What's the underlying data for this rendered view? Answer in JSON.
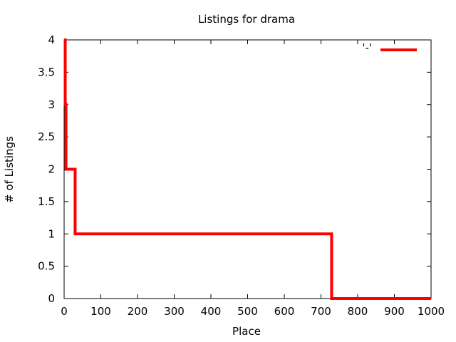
{
  "chart_data": {
    "type": "line",
    "title": "Listings for drama",
    "xlabel": "Place",
    "ylabel": "# of Listings",
    "xlim": [
      0,
      1000
    ],
    "ylim": [
      0,
      4
    ],
    "x_ticks": [
      "0",
      "100",
      "200",
      "300",
      "400",
      "500",
      "600",
      "700",
      "800",
      "900",
      "1000"
    ],
    "y_ticks": [
      "0",
      "0.5",
      "1",
      "1.5",
      "2",
      "2.5",
      "3",
      "3.5",
      "4"
    ],
    "x_tick_values": [
      0,
      100,
      200,
      300,
      400,
      500,
      600,
      700,
      800,
      900,
      1000
    ],
    "y_tick_values": [
      0,
      0.5,
      1,
      1.5,
      2,
      2.5,
      3,
      3.5,
      4
    ],
    "grid": false,
    "legend_position": "top-right",
    "series": [
      {
        "name": "'-'",
        "color": "#ff0000",
        "step": true,
        "points": [
          {
            "x": 0,
            "y": 4
          },
          {
            "x": 3,
            "y": 3
          },
          {
            "x": 5,
            "y": 2
          },
          {
            "x": 30,
            "y": 1
          },
          {
            "x": 729,
            "y": 0
          },
          {
            "x": 1000,
            "y": 0
          }
        ]
      }
    ]
  }
}
